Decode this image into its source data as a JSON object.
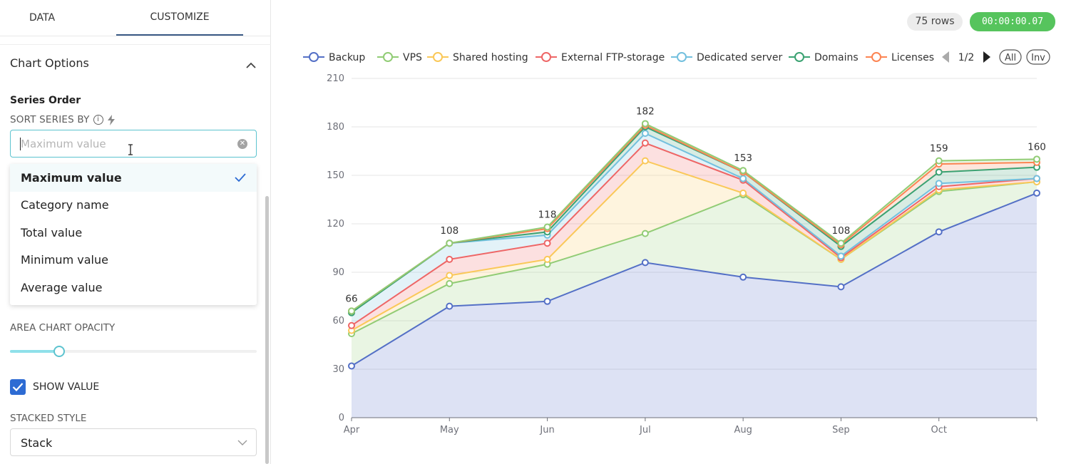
{
  "tabs": {
    "data": "DATA",
    "customize": "CUSTOMIZE"
  },
  "panel": {
    "section_title": "Chart Options",
    "series_order_heading": "Series Order",
    "sort_label": "SORT SERIES BY",
    "sort_input": {
      "placeholder": "Maximum value",
      "value": ""
    },
    "dropdown_options": [
      "Maximum value",
      "Category name",
      "Total value",
      "Minimum value",
      "Average value"
    ],
    "selected_option": "Maximum value",
    "area_opacity_label": "AREA CHART OPACITY",
    "area_opacity_value": 0.2,
    "show_value_label": "SHOW VALUE",
    "show_value_checked": true,
    "stacked_style_label": "STACKED STYLE",
    "stacked_style_value": "Stack"
  },
  "header": {
    "rows": "75 rows",
    "time": "00:00:00.07"
  },
  "legend_pager": {
    "page": "1/2",
    "all": "All",
    "inv": "Inv"
  },
  "chart_data": {
    "type": "area",
    "stacked": true,
    "categories": [
      "Apr",
      "May",
      "Jun",
      "Jul",
      "Aug",
      "Sep",
      "Oct",
      ""
    ],
    "ylim": [
      0,
      210
    ],
    "yticks": [
      0,
      30,
      60,
      90,
      120,
      150,
      180,
      210
    ],
    "grid": true,
    "legend": "top",
    "series": [
      {
        "name": "Backup",
        "color": "#5470c6",
        "cumulative": [
          32,
          69,
          72,
          96,
          87,
          81,
          115,
          139
        ]
      },
      {
        "name": "VPS",
        "color": "#91cc75",
        "cumulative": [
          52,
          83,
          95,
          114,
          138,
          98,
          140,
          146
        ]
      },
      {
        "name": "Shared hosting",
        "color": "#fac858",
        "cumulative": [
          54,
          88,
          98,
          159,
          139,
          98,
          141,
          146
        ]
      },
      {
        "name": "External FTP-storage",
        "color": "#ee6666",
        "cumulative": [
          57,
          98,
          108,
          170,
          147,
          99,
          143,
          148
        ]
      },
      {
        "name": "Dedicated server",
        "color": "#73c0de",
        "cumulative": [
          65,
          108,
          113,
          176,
          148,
          100,
          145,
          148
        ]
      },
      {
        "name": "Domains",
        "color": "#3ba272",
        "cumulative": [
          65,
          108,
          115,
          180,
          152,
          106,
          152,
          155
        ]
      },
      {
        "name": "Licenses",
        "color": "#fc8452",
        "cumulative": [
          66,
          108,
          117,
          181,
          152,
          107,
          157,
          158
        ]
      },
      {
        "name": "",
        "color": "#91cc75",
        "cumulative": [
          66,
          108,
          118,
          182,
          153,
          108,
          159,
          160
        ]
      }
    ],
    "totals": [
      66,
      108,
      118,
      182,
      153,
      108,
      159,
      160
    ]
  }
}
